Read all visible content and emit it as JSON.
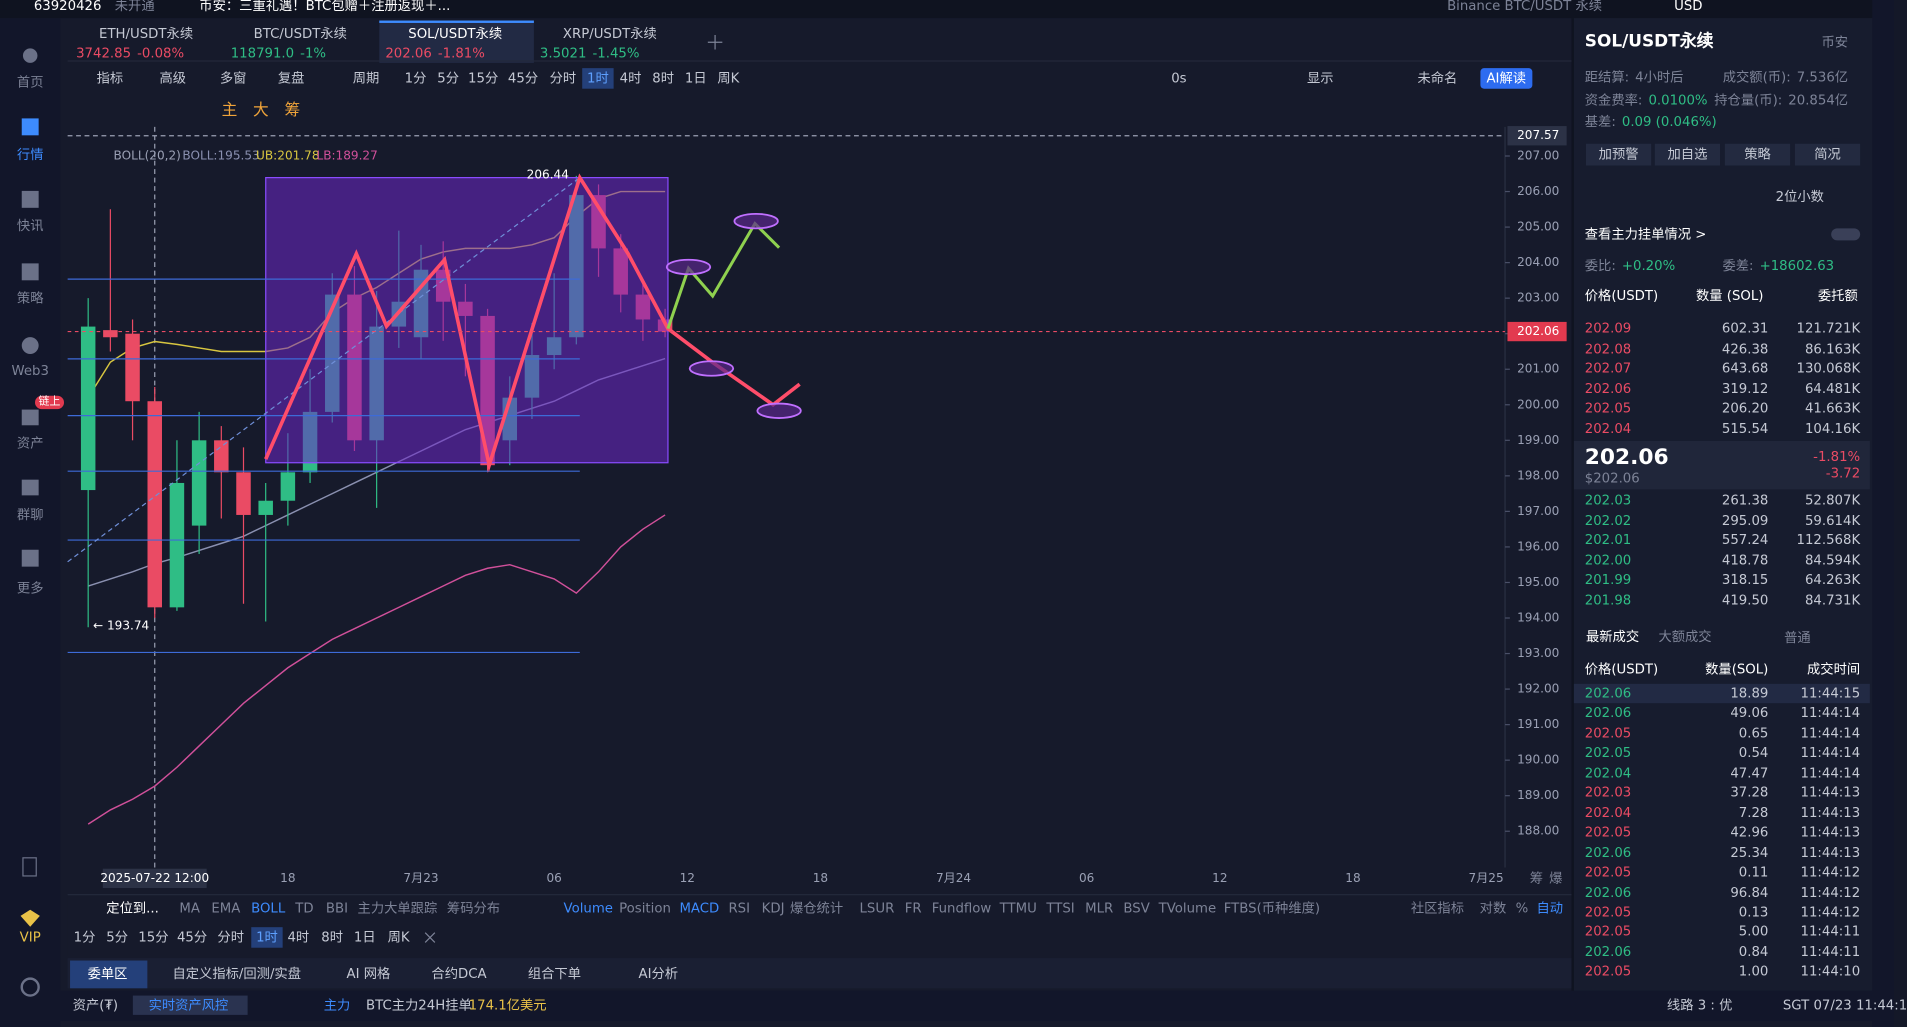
{
  "topbar": {
    "account": "63920426",
    "status": "未开通",
    "notice": "币安：三重礼遇！BTC包赠＋注册返现＋...",
    "search": "Binance BTC/USDT 永续",
    "currency": "USD"
  },
  "sidebar": {
    "items": [
      "首页",
      "行情",
      "快讯",
      "策略",
      "Web3",
      "资产",
      "群聊",
      "更多"
    ],
    "badge": "链上",
    "vip": "VIP"
  },
  "tabs": [
    {
      "name": "ETH/USDT永续",
      "price": "3742.85",
      "change": "-0.08%",
      "color": "#ea4b64"
    },
    {
      "name": "BTC/USDT永续",
      "price": "118791.0",
      "change": "-1%",
      "color": "#2fbd85"
    },
    {
      "name": "SOL/USDT永续",
      "price": "202.06",
      "change": "-1.81%",
      "color": "#ea4b64"
    },
    {
      "name": "XRP/USDT永续",
      "price": "3.5021",
      "change": "-1.45%",
      "color": "#2fbd85"
    }
  ],
  "toolbar": {
    "left": [
      "指标",
      "高级",
      "多窗",
      "复盘"
    ],
    "period": "周期",
    "intervals": [
      "1分",
      "5分",
      "15分",
      "45分",
      "分时",
      "1时",
      "4时",
      "8时",
      "1日",
      "周K"
    ],
    "right": [
      "0s",
      "显示",
      "未命名"
    ],
    "ai": "AI解读"
  },
  "draw_tools": [
    "主",
    "大",
    "筹"
  ],
  "axis_corner": [
    "筹",
    "爆"
  ],
  "chart_data": {
    "type": "candlestick",
    "indicator": "BOLL(20,2)",
    "indicator_values": [
      "BOLL:195.53",
      "UB:201.78",
      "LB:189.27"
    ],
    "crosshair_time": "2025-07-22 12:00",
    "crosshair_price": 207.57,
    "last_price": 202.06,
    "annotations": [
      "206.44",
      "← 193.74"
    ],
    "categories": [
      null,
      null,
      null,
      null,
      null,
      null,
      null,
      null,
      null,
      "18",
      null,
      null,
      null,
      null,
      null,
      "7月23",
      null,
      null,
      null,
      null,
      null,
      "06",
      null,
      null,
      null,
      null,
      null,
      "12",
      null,
      null,
      null,
      null,
      null,
      "18",
      null,
      null,
      null,
      null,
      null,
      "7月24",
      null,
      null,
      null,
      null,
      null,
      "06",
      null,
      null,
      null,
      null,
      null,
      "12",
      null,
      null,
      null,
      null,
      null,
      "18",
      null,
      null,
      null,
      null,
      null,
      "7月25"
    ],
    "open": [
      197.6,
      202.1,
      202.0,
      200.1,
      194.3,
      196.6,
      199.0,
      198.1,
      196.9,
      197.3,
      198.1,
      199.8,
      203.1,
      199.0,
      202.2,
      201.9,
      203.8,
      202.9,
      202.5,
      199.0,
      200.2,
      201.4,
      201.9,
      205.9,
      204.4,
      203.1,
      202.4,
      null,
      null,
      null,
      null,
      null,
      null,
      null,
      null,
      null,
      null,
      null,
      null,
      null,
      null,
      null,
      null,
      null,
      null,
      null,
      null,
      null,
      null,
      null,
      null,
      null,
      null,
      null,
      null,
      null,
      null,
      null,
      null,
      null,
      null,
      null,
      null,
      null
    ],
    "high": [
      203.0,
      205.5,
      202.4,
      200.5,
      199.0,
      199.8,
      199.4,
      198.8,
      197.8,
      199.2,
      201.0,
      203.7,
      203.9,
      203.2,
      204.9,
      204.5,
      204.6,
      203.4,
      202.7,
      200.8,
      202.3,
      203.7,
      206.44,
      206.2,
      204.8,
      203.5,
      202.7,
      null,
      null,
      null,
      null,
      null,
      null,
      null,
      null,
      null,
      null,
      null,
      null,
      null,
      null,
      null,
      null,
      null,
      null,
      null,
      null,
      null,
      null,
      null,
      null,
      null,
      null,
      null,
      null,
      null,
      null,
      null,
      null,
      null,
      null,
      null,
      null,
      null
    ],
    "low": [
      193.74,
      201.5,
      199.0,
      194.0,
      194.2,
      195.8,
      196.8,
      194.4,
      193.9,
      196.6,
      197.8,
      199.5,
      198.7,
      197.1,
      201.6,
      201.3,
      201.8,
      200.8,
      198.1,
      198.3,
      199.6,
      201.0,
      201.7,
      203.6,
      202.6,
      201.8,
      201.9,
      null,
      null,
      null,
      null,
      null,
      null,
      null,
      null,
      null,
      null,
      null,
      null,
      null,
      null,
      null,
      null,
      null,
      null,
      null,
      null,
      null,
      null,
      null,
      null,
      null,
      null,
      null,
      null,
      null,
      null,
      null,
      null,
      null,
      null,
      null,
      null,
      null
    ],
    "close": [
      202.2,
      201.9,
      200.1,
      194.3,
      197.8,
      199.0,
      198.1,
      196.9,
      197.3,
      198.1,
      199.8,
      203.1,
      199.0,
      202.2,
      202.9,
      203.8,
      202.9,
      202.5,
      198.3,
      200.2,
      201.4,
      201.9,
      205.9,
      204.4,
      203.1,
      202.4,
      202.06,
      null,
      null,
      null,
      null,
      null,
      null,
      null,
      null,
      null,
      null,
      null,
      null,
      null,
      null,
      null,
      null,
      null,
      null,
      null,
      null,
      null,
      null,
      null,
      null,
      null,
      null,
      null,
      null,
      null,
      null,
      null,
      null,
      null,
      null,
      null,
      null,
      null
    ],
    "up_color": "#2fbd85",
    "down_color": "#ea4b64",
    "series": [
      {
        "color": "#d8c640",
        "values": [
          200.2,
          201.2,
          201.6,
          201.78,
          201.7,
          201.6,
          201.5,
          201.5,
          201.5,
          201.6,
          201.9,
          202.6,
          203.0,
          203.3,
          203.7,
          204.1,
          204.3,
          204.4,
          204.4,
          204.4,
          204.5,
          204.7,
          205.3,
          205.8,
          206.0,
          206.0,
          206.0,
          null,
          null,
          null,
          null,
          null,
          null,
          null,
          null,
          null,
          null,
          null,
          null,
          null,
          null,
          null,
          null,
          null,
          null,
          null,
          null,
          null,
          null,
          null,
          null,
          null,
          null,
          null,
          null,
          null,
          null,
          null,
          null,
          null,
          null,
          null,
          null,
          null
        ]
      },
      {
        "color": "#8a90b0",
        "values": [
          194.9,
          195.1,
          195.3,
          195.53,
          195.7,
          195.9,
          196.1,
          196.3,
          196.6,
          196.9,
          197.2,
          197.5,
          197.8,
          198.1,
          198.4,
          198.7,
          199.0,
          199.3,
          199.5,
          199.7,
          199.9,
          200.1,
          200.4,
          200.7,
          200.9,
          201.1,
          201.3,
          null,
          null,
          null,
          null,
          null,
          null,
          null,
          null,
          null,
          null,
          null,
          null,
          null,
          null,
          null,
          null,
          null,
          null,
          null,
          null,
          null,
          null,
          null,
          null,
          null,
          null,
          null,
          null,
          null,
          null,
          null,
          null,
          null,
          null,
          null,
          null,
          null
        ]
      },
      {
        "color": "#d0509a",
        "values": [
          188.2,
          188.6,
          188.9,
          189.27,
          189.8,
          190.4,
          191.0,
          191.6,
          192.1,
          192.6,
          193.0,
          193.4,
          193.7,
          194.0,
          194.3,
          194.6,
          194.9,
          195.2,
          195.4,
          195.5,
          195.3,
          195.1,
          194.7,
          195.3,
          196.0,
          196.5,
          196.9,
          null,
          null,
          null,
          null,
          null,
          null,
          null,
          null,
          null,
          null,
          null,
          null,
          null,
          null,
          null,
          null,
          null,
          null,
          null,
          null,
          null,
          null,
          null,
          null,
          null,
          null,
          null,
          null,
          null,
          null,
          null,
          null,
          null,
          null,
          null,
          null,
          null
        ]
      }
    ],
    "ylim": [
      186.98,
      207.82
    ],
    "yticks": [
      {
        "value": 188,
        "label": "188.00"
      },
      {
        "value": 189,
        "label": "189.00"
      },
      {
        "value": 190,
        "label": "190.00"
      },
      {
        "value": 191,
        "label": "191.00"
      },
      {
        "value": 192,
        "label": "192.00"
      },
      {
        "value": 193,
        "label": "193.00"
      },
      {
        "value": 194,
        "label": "194.00"
      },
      {
        "value": 195,
        "label": "195.00"
      },
      {
        "value": 196,
        "label": "196.00"
      },
      {
        "value": 197,
        "label": "197.00"
      },
      {
        "value": 198,
        "label": "198.00"
      },
      {
        "value": 199,
        "label": "199.00"
      },
      {
        "value": 200,
        "label": "200.00"
      },
      {
        "value": 201,
        "label": "201.00"
      },
      {
        "value": 202,
        "label": "202.00"
      },
      {
        "value": 203,
        "label": "203.00"
      },
      {
        "value": 204,
        "label": "204.00"
      },
      {
        "value": 205,
        "label": "205.00"
      },
      {
        "value": 206,
        "label": "206.00"
      },
      {
        "value": 207,
        "label": "207.00"
      }
    ]
  },
  "indicator_bar": {
    "locate": "定位到...",
    "main": [
      "MA",
      "EMA",
      "BOLL",
      "TD",
      "BBI",
      "主力大单跟踪",
      "筹码分布"
    ],
    "sub": [
      "Volume",
      "Position",
      "MACD",
      "RSI",
      "KDJ",
      "爆仓统计",
      "LSUR",
      "FR",
      "Fundflow",
      "TTMU",
      "TTSI",
      "MLR",
      "BSV",
      "TVolume",
      "FTBS(币种维度)"
    ],
    "right": [
      "社区指标",
      "对数",
      "%",
      "自动"
    ]
  },
  "period_bar": [
    "1分",
    "5分",
    "15分",
    "45分",
    "分时",
    "1时",
    "4时",
    "8时",
    "1日",
    "周K"
  ],
  "bottom_tabs": [
    "委单区",
    "自定义指标/回测/实盘",
    "AI 网格",
    "合约DCA",
    "组合下单",
    "AI分析"
  ],
  "status": {
    "assets": "资产(₮)",
    "risk": "实时资产风控",
    "tag": "主力",
    "btc": "BTC主力24H挂单",
    "btc_value": "174.1亿美元",
    "line": "线路 3 : 优",
    "time": "SGT 07/23 11:44:1"
  },
  "panel": {
    "title": "SOL/USDT永续",
    "exchange": "币安",
    "info": [
      [
        "距结算:",
        "4小时后"
      ],
      [
        "成交额(币):",
        "7.536亿"
      ],
      [
        "资金费率:",
        "0.0100%"
      ],
      [
        "持仓量(币):",
        "20.854亿"
      ],
      [
        "基差:",
        "0.09 (0.046%)"
      ]
    ],
    "buttons": [
      "加预警",
      "加自选",
      "策略",
      "简况"
    ],
    "decimals": "2位小数",
    "depth_link": "查看主力挂单情况 >",
    "ratio": [
      "委比:",
      "+0.20%"
    ],
    "diff": [
      "委差:",
      "+18602.63"
    ],
    "book_header": [
      "价格(USDT)",
      "数量 (SOL)",
      "委托额"
    ],
    "asks": [
      [
        "202.09",
        "602.31",
        "121.721K"
      ],
      [
        "202.08",
        "426.38",
        "86.163K"
      ],
      [
        "202.07",
        "643.68",
        "130.068K"
      ],
      [
        "202.06",
        "319.12",
        "64.481K"
      ],
      [
        "202.05",
        "206.20",
        "41.663K"
      ],
      [
        "202.04",
        "515.54",
        "104.16K"
      ]
    ],
    "last": "202.06",
    "last_usd": "$202.06",
    "change_pct": "-1.81%",
    "change": "-3.72",
    "bids": [
      [
        "202.03",
        "261.38",
        "52.807K"
      ],
      [
        "202.02",
        "295.09",
        "59.614K"
      ],
      [
        "202.01",
        "557.24",
        "112.568K"
      ],
      [
        "202.00",
        "418.78",
        "84.594K"
      ],
      [
        "201.99",
        "318.15",
        "64.263K"
      ],
      [
        "201.98",
        "419.50",
        "84.731K"
      ]
    ],
    "trade_tabs": [
      "最新成交",
      "大额成交"
    ],
    "normal": "普通",
    "trade_header": [
      "价格(USDT)",
      "数量(SOL)",
      "成交时间"
    ],
    "trades": [
      {
        "price": "202.06",
        "qty": "18.89",
        "time": "11:44:15",
        "color": "#2fbd85"
      },
      {
        "price": "202.06",
        "qty": "49.06",
        "time": "11:44:14",
        "color": "#2fbd85"
      },
      {
        "price": "202.05",
        "qty": "0.65",
        "time": "11:44:14",
        "color": "#ea4b64"
      },
      {
        "price": "202.05",
        "qty": "0.54",
        "time": "11:44:14",
        "color": "#2fbd85"
      },
      {
        "price": "202.04",
        "qty": "47.47",
        "time": "11:44:14",
        "color": "#2fbd85"
      },
      {
        "price": "202.03",
        "qty": "37.28",
        "time": "11:44:13",
        "color": "#ea4b64"
      },
      {
        "price": "202.04",
        "qty": "7.28",
        "time": "11:44:13",
        "color": "#ea4b64"
      },
      {
        "price": "202.05",
        "qty": "42.96",
        "time": "11:44:13",
        "color": "#ea4b64"
      },
      {
        "price": "202.06",
        "qty": "25.34",
        "time": "11:44:13",
        "color": "#2fbd85"
      },
      {
        "price": "202.05",
        "qty": "0.11",
        "time": "11:44:12",
        "color": "#ea4b64"
      },
      {
        "price": "202.06",
        "qty": "96.84",
        "time": "11:44:12",
        "color": "#2fbd85"
      },
      {
        "price": "202.05",
        "qty": "0.13",
        "time": "11:44:12",
        "color": "#ea4b64"
      },
      {
        "price": "202.05",
        "qty": "5.00",
        "time": "11:44:11",
        "color": "#ea4b64"
      },
      {
        "price": "202.06",
        "qty": "0.84",
        "time": "11:44:11",
        "color": "#2fbd85"
      },
      {
        "price": "202.05",
        "qty": "1.00",
        "time": "11:44:10",
        "color": "#ea4b64"
      }
    ]
  }
}
